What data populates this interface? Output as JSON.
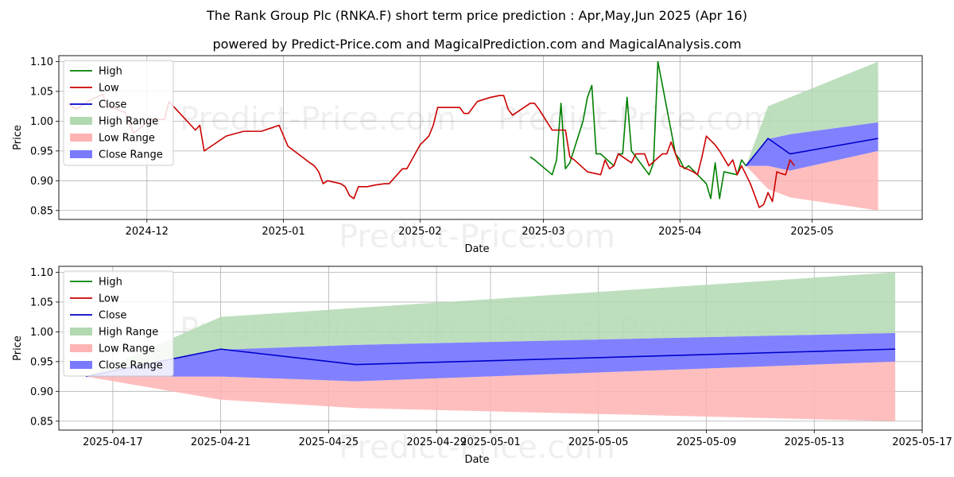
{
  "title": "The Rank Group Plc (RNKA.F) short term price prediction : Apr,May,Jun 2025 (Apr 16)",
  "subtitle": "powered by Predict-Price.com and MagicalPrediction.com and MagicalAnalysis.com",
  "watermark": "Predict-Price.com",
  "colors": {
    "high": "#008000",
    "low": "#cc0000",
    "close": "#0000cc",
    "high_range": "#b3d9b3",
    "low_range": "#ffb3b3",
    "close_range": "#7a7aff",
    "grid": "#b0b0b0"
  },
  "legend": [
    {
      "key": "high",
      "label": "High",
      "kind": "line"
    },
    {
      "key": "low",
      "label": "Low",
      "kind": "line"
    },
    {
      "key": "close",
      "label": "Close",
      "kind": "line"
    },
    {
      "key": "high_range",
      "label": "High Range",
      "kind": "patch"
    },
    {
      "key": "low_range",
      "label": "Low Range",
      "kind": "patch"
    },
    {
      "key": "close_range",
      "label": "Close Range",
      "kind": "patch"
    }
  ],
  "chart_data": [
    {
      "type": "line",
      "xlabel": "Date",
      "ylabel": "Price",
      "xlim": [
        "2025-11-13",
        "2025-05-26"
      ],
      "ylim": [
        0.835,
        1.11
      ],
      "grid": true,
      "legend_position": "top-left",
      "x_ticks": [
        "2024-12",
        "2025-01",
        "2025-02",
        "2025-03",
        "2025-04",
        "2025-05"
      ],
      "y_ticks": [
        "0.85",
        "0.90",
        "0.95",
        "1.00",
        "1.05",
        "1.10"
      ],
      "series": [
        {
          "name": "High",
          "key": "high",
          "points": [
            [
              "2025-02-26",
              0.94
            ],
            [
              "2025-02-27",
              0.935
            ],
            [
              "2025-03-03",
              0.91
            ],
            [
              "2025-03-04",
              0.935
            ],
            [
              "2025-03-05",
              1.03
            ],
            [
              "2025-03-06",
              0.92
            ],
            [
              "2025-03-07",
              0.93
            ],
            [
              "2025-03-10",
              1.0
            ],
            [
              "2025-03-11",
              1.04
            ],
            [
              "2025-03-12",
              1.06
            ],
            [
              "2025-03-13",
              0.945
            ],
            [
              "2025-03-14",
              0.945
            ],
            [
              "2025-03-17",
              0.925
            ],
            [
              "2025-03-18",
              0.945
            ],
            [
              "2025-03-19",
              0.945
            ],
            [
              "2025-03-20",
              1.04
            ],
            [
              "2025-03-21",
              0.95
            ],
            [
              "2025-03-25",
              0.91
            ],
            [
              "2025-03-26",
              0.93
            ],
            [
              "2025-03-27",
              1.1
            ],
            [
              "2025-03-31",
              0.945
            ],
            [
              "2025-04-01",
              0.935
            ],
            [
              "2025-04-02",
              0.92
            ],
            [
              "2025-04-03",
              0.925
            ],
            [
              "2025-04-07",
              0.895
            ],
            [
              "2025-04-08",
              0.87
            ],
            [
              "2025-04-09",
              0.93
            ],
            [
              "2025-04-10",
              0.87
            ],
            [
              "2025-04-11",
              0.915
            ],
            [
              "2025-04-14",
              0.91
            ],
            [
              "2025-04-15",
              0.935
            ],
            [
              "2025-04-16",
              0.925
            ]
          ]
        },
        {
          "name": "Low",
          "key": "low",
          "points": [
            [
              "2024-11-13",
              1.03
            ],
            [
              "2024-11-15",
              1.02
            ],
            [
              "2024-11-18",
              1.035
            ],
            [
              "2024-11-21",
              1.045
            ],
            [
              "2024-11-22",
              1.025
            ],
            [
              "2024-11-26",
              1.015
            ],
            [
              "2024-11-28",
              0.98
            ],
            [
              "2024-12-02",
              1.003
            ],
            [
              "2024-12-05",
              1.003
            ],
            [
              "2024-12-06",
              1.033
            ],
            [
              "2024-12-12",
              0.985
            ],
            [
              "2024-12-13",
              0.993
            ],
            [
              "2024-12-14",
              0.95
            ],
            [
              "2024-12-19",
              0.975
            ],
            [
              "2024-12-23",
              0.983
            ],
            [
              "2024-12-27",
              0.983
            ],
            [
              "2024-12-31",
              0.993
            ],
            [
              "2025-01-02",
              0.958
            ],
            [
              "2025-01-07",
              0.93
            ],
            [
              "2025-01-08",
              0.925
            ],
            [
              "2025-01-09",
              0.915
            ],
            [
              "2025-01-10",
              0.895
            ],
            [
              "2025-01-11",
              0.9
            ],
            [
              "2025-01-14",
              0.895
            ],
            [
              "2025-01-15",
              0.89
            ],
            [
              "2025-01-16",
              0.875
            ],
            [
              "2025-01-17",
              0.87
            ],
            [
              "2025-01-18",
              0.89
            ],
            [
              "2025-01-20",
              0.89
            ],
            [
              "2025-01-22",
              0.893
            ],
            [
              "2025-01-24",
              0.895
            ],
            [
              "2025-01-25",
              0.895
            ],
            [
              "2025-01-28",
              0.92
            ],
            [
              "2025-01-29",
              0.92
            ],
            [
              "2025-02-01",
              0.96
            ],
            [
              "2025-02-03",
              0.975
            ],
            [
              "2025-02-04",
              0.993
            ],
            [
              "2025-02-05",
              1.023
            ],
            [
              "2025-02-10",
              1.023
            ],
            [
              "2025-02-11",
              1.013
            ],
            [
              "2025-02-12",
              1.013
            ],
            [
              "2025-02-14",
              1.033
            ],
            [
              "2025-02-17",
              1.04
            ],
            [
              "2025-02-19",
              1.043
            ],
            [
              "2025-02-20",
              1.043
            ],
            [
              "2025-02-21",
              1.02
            ],
            [
              "2025-02-22",
              1.01
            ],
            [
              "2025-02-26",
              1.03
            ],
            [
              "2025-02-27",
              1.03
            ],
            [
              "2025-02-28",
              1.02
            ],
            [
              "2025-03-03",
              0.985
            ],
            [
              "2025-03-06",
              0.985
            ],
            [
              "2025-03-07",
              0.94
            ],
            [
              "2025-03-08",
              0.935
            ],
            [
              "2025-03-11",
              0.915
            ],
            [
              "2025-03-14",
              0.91
            ],
            [
              "2025-03-15",
              0.935
            ],
            [
              "2025-03-16",
              0.92
            ],
            [
              "2025-03-17",
              0.925
            ],
            [
              "2025-03-18",
              0.945
            ],
            [
              "2025-03-21",
              0.93
            ],
            [
              "2025-03-22",
              0.945
            ],
            [
              "2025-03-24",
              0.945
            ],
            [
              "2025-03-25",
              0.925
            ],
            [
              "2025-03-28",
              0.945
            ],
            [
              "2025-03-29",
              0.945
            ],
            [
              "2025-03-30",
              0.965
            ],
            [
              "2025-03-31",
              0.945
            ],
            [
              "2025-04-01",
              0.925
            ],
            [
              "2025-04-04",
              0.915
            ],
            [
              "2025-04-05",
              0.91
            ],
            [
              "2025-04-06",
              0.94
            ],
            [
              "2025-04-07",
              0.975
            ],
            [
              "2025-04-09",
              0.96
            ],
            [
              "2025-04-10",
              0.95
            ],
            [
              "2025-04-12",
              0.925
            ],
            [
              "2025-04-13",
              0.935
            ],
            [
              "2025-04-14",
              0.91
            ],
            [
              "2025-04-15",
              0.925
            ],
            [
              "2025-04-17",
              0.895
            ],
            [
              "2025-04-19",
              0.855
            ],
            [
              "2025-04-20",
              0.86
            ],
            [
              "2025-04-21",
              0.88
            ],
            [
              "2025-04-22",
              0.865
            ],
            [
              "2025-04-23",
              0.915
            ],
            [
              "2025-04-24",
              0.912
            ],
            [
              "2025-04-25",
              0.91
            ],
            [
              "2025-04-26",
              0.935
            ],
            [
              "2025-04-27",
              0.925
            ]
          ]
        },
        {
          "name": "Close",
          "key": "close",
          "points": [
            [
              "2025-04-16",
              0.925
            ],
            [
              "2025-04-21",
              0.971
            ],
            [
              "2025-04-26",
              0.945
            ],
            [
              "2025-05-16",
              0.971
            ]
          ]
        }
      ],
      "ranges": [
        {
          "name": "High Range",
          "key": "high_range",
          "points": [
            [
              "2025-04-16",
              0.925,
              0.925
            ],
            [
              "2025-04-21",
              0.97,
              1.025
            ],
            [
              "2025-04-26",
              0.978,
              1.04
            ],
            [
              "2025-05-16",
              0.998,
              1.1
            ]
          ]
        },
        {
          "name": "Low Range",
          "key": "low_range",
          "points": [
            [
              "2025-04-16",
              0.925,
              0.925
            ],
            [
              "2025-04-21",
              0.886,
              0.925
            ],
            [
              "2025-04-26",
              0.872,
              0.917
            ],
            [
              "2025-05-16",
              0.85,
              0.95
            ]
          ]
        },
        {
          "name": "Close Range",
          "key": "close_range",
          "points": [
            [
              "2025-04-16",
              0.925,
              0.925
            ],
            [
              "2025-04-21",
              0.925,
              0.97
            ],
            [
              "2025-04-26",
              0.917,
              0.978
            ],
            [
              "2025-05-16",
              0.95,
              0.998
            ]
          ]
        }
      ]
    },
    {
      "type": "line",
      "xlabel": "Date",
      "ylabel": "Price",
      "xlim": [
        "2025-04-15",
        "2025-05-17"
      ],
      "ylim": [
        0.835,
        1.11
      ],
      "grid": true,
      "legend_position": "top-left",
      "x_ticks": [
        "2025-04-17",
        "2025-04-21",
        "2025-04-25",
        "2025-04-29",
        "2025-05-01",
        "2025-05-05",
        "2025-05-09",
        "2025-05-13",
        "2025-05-17"
      ],
      "y_ticks": [
        "0.85",
        "0.90",
        "0.95",
        "1.00",
        "1.05",
        "1.10"
      ],
      "series": [
        {
          "name": "Close",
          "key": "close",
          "points": [
            [
              "2025-04-16",
              0.925
            ],
            [
              "2025-04-21",
              0.971
            ],
            [
              "2025-04-26",
              0.945
            ],
            [
              "2025-05-16",
              0.971
            ]
          ]
        }
      ],
      "ranges": [
        {
          "name": "High Range",
          "key": "high_range",
          "points": [
            [
              "2025-04-16",
              0.925,
              0.925
            ],
            [
              "2025-04-21",
              0.97,
              1.025
            ],
            [
              "2025-04-26",
              0.978,
              1.04
            ],
            [
              "2025-05-16",
              0.998,
              1.1
            ]
          ]
        },
        {
          "name": "Low Range",
          "key": "low_range",
          "points": [
            [
              "2025-04-16",
              0.925,
              0.925
            ],
            [
              "2025-04-21",
              0.886,
              0.925
            ],
            [
              "2025-04-26",
              0.872,
              0.917
            ],
            [
              "2025-05-16",
              0.85,
              0.95
            ]
          ]
        },
        {
          "name": "Close Range",
          "key": "close_range",
          "points": [
            [
              "2025-04-16",
              0.925,
              0.925
            ],
            [
              "2025-04-21",
              0.925,
              0.97
            ],
            [
              "2025-04-26",
              0.917,
              0.978
            ],
            [
              "2025-05-16",
              0.95,
              0.998
            ]
          ]
        }
      ]
    }
  ]
}
